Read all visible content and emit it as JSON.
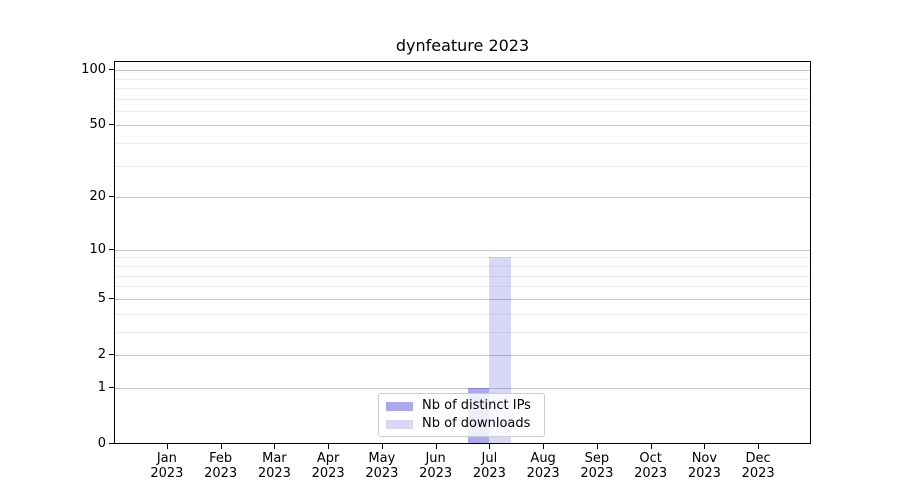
{
  "title": "dynfeature 2023",
  "chart_data": {
    "type": "bar",
    "title": "dynfeature 2023",
    "categories": [
      "Jan",
      "Feb",
      "Mar",
      "Apr",
      "May",
      "Jun",
      "Jul",
      "Aug",
      "Sep",
      "Oct",
      "Nov",
      "Dec"
    ],
    "category_year": "2023",
    "series": [
      {
        "name": "Nb of distinct IPs",
        "color": "rgba(10,10,200,0.35)",
        "values": [
          0,
          0,
          0,
          0,
          0,
          0,
          1,
          0,
          0,
          0,
          0,
          0
        ]
      },
      {
        "name": "Nb of downloads",
        "color": "rgba(10,10,200,0.16)",
        "values": [
          0,
          0,
          0,
          0,
          0,
          0,
          9,
          0,
          0,
          0,
          0,
          0
        ]
      }
    ],
    "yscale": "log1p",
    "ylim": [
      0,
      112
    ],
    "yticks": [
      0,
      1,
      2,
      5,
      10,
      20,
      50,
      100
    ],
    "yticks_minor": [
      3,
      4,
      6,
      7,
      8,
      9,
      30,
      40,
      60,
      70,
      80,
      90
    ],
    "xlabel": "",
    "ylabel": "",
    "grid": "both-horizontal",
    "legend_position": "lower center"
  },
  "colors": {
    "background": "#ffffff",
    "axis": "#000000",
    "grid_major": "#c6c6c6",
    "grid_minor": "#ececec",
    "legend_border": "#cccccc",
    "bar_distinct_ips_blended": "#a9a9ec",
    "bar_downloads_blended": "#d8d8f6"
  }
}
